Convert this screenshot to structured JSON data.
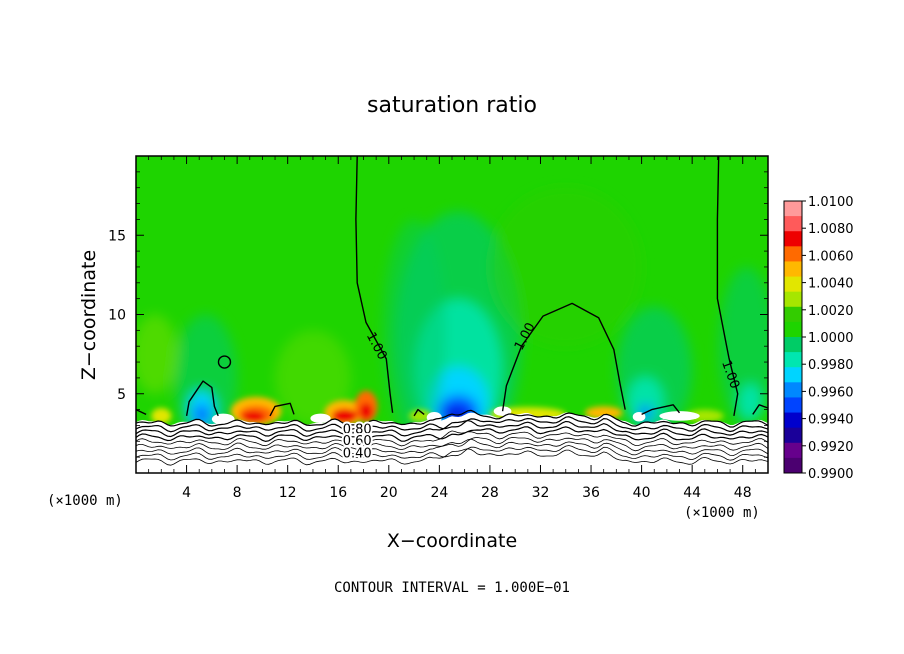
{
  "chart_data": {
    "type": "heatmap",
    "title": "saturation ratio",
    "xlabel": "X−coordinate",
    "ylabel": "Z−coordinate",
    "x_unit_left": "(×1000 m)",
    "x_unit_right": "(×1000 m)",
    "xlim": [
      0,
      50
    ],
    "ylim": [
      0,
      20
    ],
    "xticks": [
      4,
      8,
      12,
      16,
      20,
      24,
      28,
      32,
      36,
      40,
      44,
      48
    ],
    "yticks": [
      5,
      10,
      15
    ],
    "footer": "CONTOUR INTERVAL = 1.000E−01",
    "colorbar": {
      "labels": [
        "1.0100",
        "1.0080",
        "1.0060",
        "1.0040",
        "1.0020",
        "1.0000",
        "0.9980",
        "0.9960",
        "0.9940",
        "0.9920",
        "0.9900"
      ],
      "colors": [
        "#ff9a9a",
        "#ff5a5a",
        "#ee0000",
        "#ff6a00",
        "#ffb800",
        "#e2e600",
        "#a6e600",
        "#33cc00",
        "#1ed400",
        "#00cc66",
        "#00e6b0",
        "#00d4ff",
        "#0088ff",
        "#0044ff",
        "#0000cc",
        "#1a0099",
        "#66008c",
        "#4b0070"
      ]
    },
    "background_value": 1.0,
    "contour_labels": [
      {
        "text": "1.00",
        "x": 19.0,
        "z": 8.0,
        "angle": 62
      },
      {
        "text": "1.00",
        "x": 30.8,
        "z": 8.6,
        "angle": -62
      },
      {
        "text": "1.00",
        "x": 47.0,
        "z": 6.2,
        "angle": 70
      },
      {
        "text": "0.80",
        "x": 17.5,
        "z": 2.7,
        "angle": 0
      },
      {
        "text": "0.60",
        "x": 17.5,
        "z": 2.0,
        "angle": 0
      },
      {
        "text": "0.40",
        "x": 17.5,
        "z": 1.2,
        "angle": 0
      }
    ],
    "dry_contour_levels": [
      0.9,
      0.8,
      0.7,
      0.6,
      0.5,
      0.4,
      0.3,
      0.2,
      0.1
    ]
  }
}
